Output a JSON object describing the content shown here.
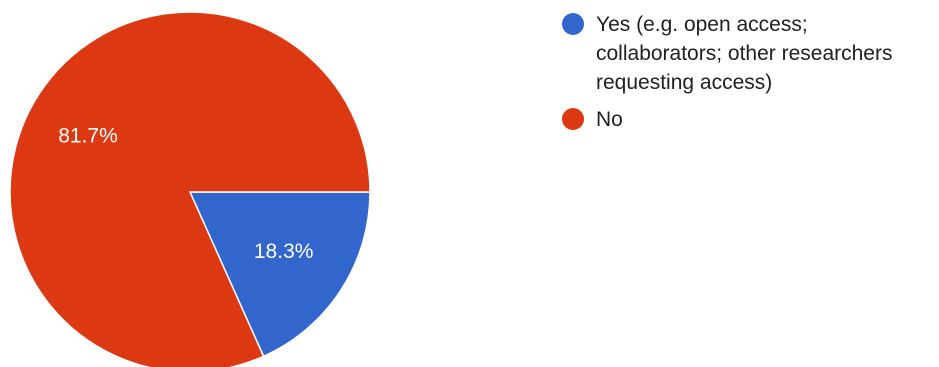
{
  "chart_data": {
    "type": "pie",
    "title": "",
    "slices": [
      {
        "label": "Yes (e.g. open access; collaborators; other researchers requesting access)",
        "value": 18.3,
        "display": "18.3%",
        "color": "#3366cc"
      },
      {
        "label": "No",
        "value": 81.7,
        "display": "81.7%",
        "color": "#dc3912"
      }
    ],
    "legend_position": "right"
  }
}
